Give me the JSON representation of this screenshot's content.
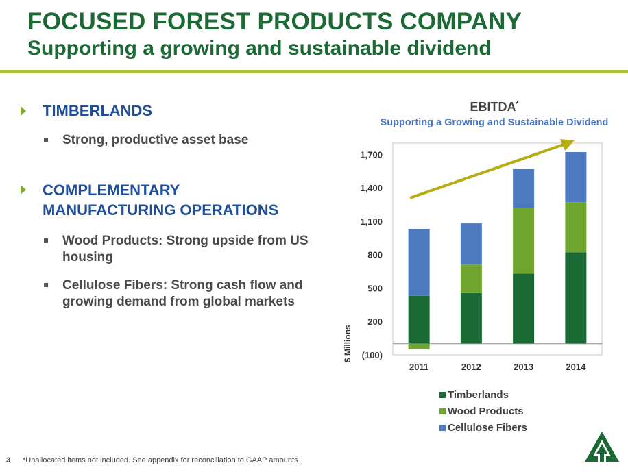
{
  "header": {
    "title": "FOCUSED FOREST PRODUCTS COMPANY",
    "subtitle": "Supporting a growing and sustainable dividend"
  },
  "left": {
    "sections": [
      {
        "heading": "TIMBERLANDS",
        "bullets": [
          "Strong, productive asset base"
        ]
      },
      {
        "heading_line1": "COMPLEMENTARY",
        "heading_line2": "MANUFACTURING OPERATIONS",
        "bullets": [
          "Wood Products: Strong upside from US housing",
          "Cellulose Fibers: Strong cash flow and growing demand from global markets"
        ]
      }
    ]
  },
  "chart_data": {
    "type": "bar",
    "stacked": true,
    "title": "EBITDA",
    "title_superscript": "*",
    "subtitle": "Supporting a Growing and Sustainable Dividend",
    "ylabel": "$ Millions",
    "xlabel": "",
    "categories": [
      "2011",
      "2012",
      "2013",
      "2014"
    ],
    "yticks": [
      -100,
      200,
      500,
      800,
      1100,
      1400,
      1700
    ],
    "ytick_labels": [
      "(100)",
      "200",
      "500",
      "800",
      "1,100",
      "1,400",
      "1,700"
    ],
    "ylim": [
      -100,
      1800
    ],
    "grid": false,
    "legend_position": "bottom",
    "series": [
      {
        "name": "Timberlands",
        "color": "#1b6a35",
        "values": [
          430,
          460,
          630,
          820
        ]
      },
      {
        "name": "Wood Products",
        "color": "#6fa52e",
        "values": [
          -50,
          250,
          590,
          450
        ]
      },
      {
        "name": "Cellulose Fibers",
        "color": "#4d79be",
        "values": [
          600,
          370,
          350,
          450
        ]
      }
    ],
    "trend_arrow": {
      "color": "#b5ad12",
      "direction": "up-right"
    }
  },
  "footer": {
    "page_number": "3",
    "footnote": "*Unallocated items not included. See appendix for reconciliation to GAAP amounts."
  },
  "logo": {
    "icon": "tree-logo-icon",
    "color": "#1b6a35"
  }
}
